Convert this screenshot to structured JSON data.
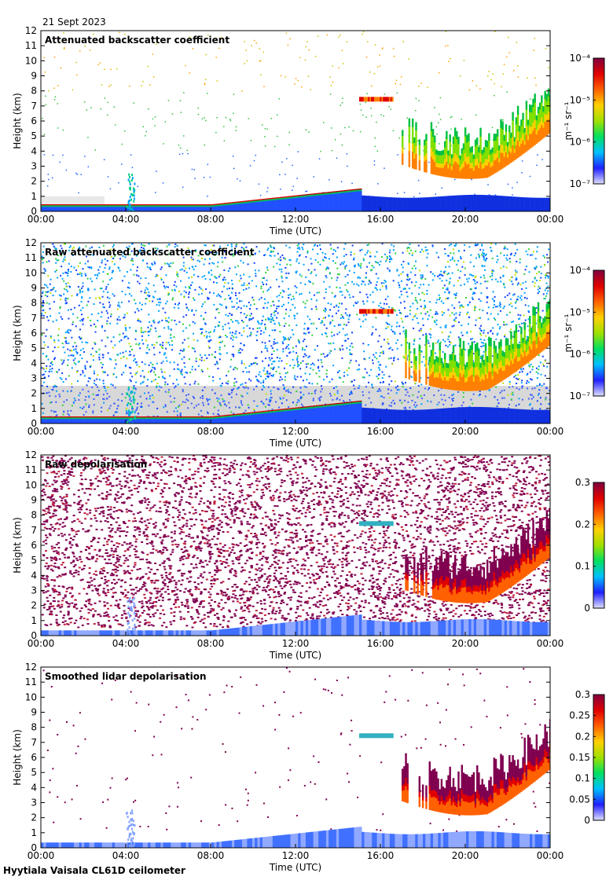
{
  "date": "21 Sept 2023",
  "site": "Hyytiala Vaisala CL61D ceilometer",
  "colorscale": [
    "#e0e0ff",
    "#2020ff",
    "#00c0ff",
    "#00e060",
    "#a0e000",
    "#ffd000",
    "#ff6000",
    "#e00000",
    "#800040"
  ],
  "chart_data": [
    {
      "type": "heatmap",
      "title": "Attenuated backscatter coefficient",
      "xlabel": "Time (UTC)",
      "ylabel": "Height (km)",
      "x_ticks": [
        "00:00",
        "04:00",
        "08:00",
        "12:00",
        "16:00",
        "20:00",
        "00:00"
      ],
      "y_ticks": [
        "0",
        "1",
        "2",
        "3",
        "4",
        "5",
        "6",
        "7",
        "8",
        "9",
        "10",
        "11",
        "12"
      ],
      "ylim": [
        0,
        12
      ],
      "colorbar": {
        "label": "m⁻¹ sr⁻¹",
        "log": true,
        "ticks": [
          "10⁻⁴",
          "10⁻⁵",
          "10⁻⁶",
          "10⁻⁷"
        ]
      },
      "background": "clear"
    },
    {
      "type": "heatmap",
      "title": "Raw attenuated backscatter coefficient",
      "xlabel": "Time (UTC)",
      "ylabel": "Height (km)",
      "x_ticks": [
        "00:00",
        "04:00",
        "08:00",
        "12:00",
        "16:00",
        "20:00",
        "00:00"
      ],
      "y_ticks": [
        "0",
        "1",
        "2",
        "3",
        "4",
        "5",
        "6",
        "7",
        "8",
        "9",
        "10",
        "11",
        "12"
      ],
      "ylim": [
        0,
        12
      ],
      "colorbar": {
        "label": "m⁻¹ sr⁻¹",
        "log": true,
        "ticks": [
          "10⁻⁴",
          "10⁻⁵",
          "10⁻⁶",
          "10⁻⁷"
        ]
      },
      "background": "noisy"
    },
    {
      "type": "heatmap",
      "title": "Raw depolarisation",
      "xlabel": "Time (UTC)",
      "ylabel": "Height (km)",
      "x_ticks": [
        "00:00",
        "04:00",
        "08:00",
        "12:00",
        "16:00",
        "20:00",
        "00:00"
      ],
      "y_ticks": [
        "0",
        "1",
        "2",
        "3",
        "4",
        "5",
        "6",
        "7",
        "8",
        "9",
        "10",
        "11",
        "12"
      ],
      "ylim": [
        0,
        12
      ],
      "colorbar": {
        "label": "",
        "log": false,
        "ticks": [
          "0.3",
          "0.2",
          "0.1",
          "0"
        ]
      },
      "background": "depol-noise"
    },
    {
      "type": "heatmap",
      "title": "Smoothed lidar depolarisation",
      "xlabel": "Time (UTC)",
      "ylabel": "Height (km)",
      "x_ticks": [
        "00:00",
        "04:00",
        "08:00",
        "12:00",
        "16:00",
        "20:00",
        "00:00"
      ],
      "y_ticks": [
        "0",
        "1",
        "2",
        "3",
        "4",
        "5",
        "6",
        "7",
        "8",
        "9",
        "10",
        "11",
        "12"
      ],
      "ylim": [
        0,
        12
      ],
      "colorbar": {
        "label": "",
        "log": false,
        "ticks": [
          "0.3",
          "0.25",
          "0.2",
          "0.15",
          "0.1",
          "0.05",
          "0"
        ]
      },
      "background": "sparse-depol"
    }
  ]
}
